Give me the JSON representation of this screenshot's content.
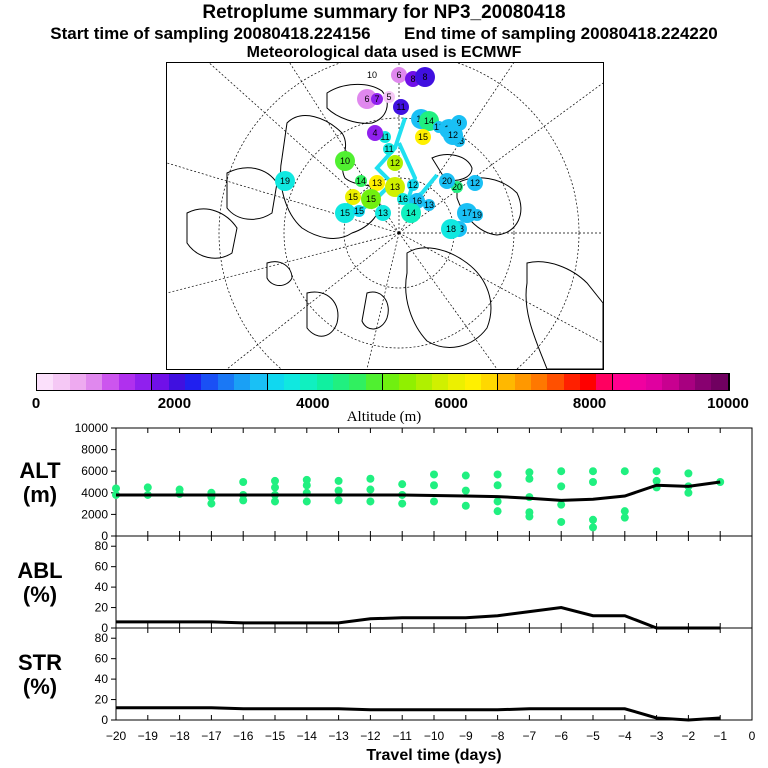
{
  "header": {
    "title": "Retroplume summary for NP3_20080418",
    "start_label": "Start time of sampling 20080418.224156",
    "end_label": "End time of sampling 20080418.224220",
    "met_label": "Meteorological data used is ECMWF"
  },
  "map_markers": [
    "10",
    "6",
    "6",
    "7",
    "8",
    "8",
    "5",
    "11",
    "11",
    "11",
    "4",
    "14",
    "12",
    "9",
    "11",
    "13",
    "15",
    "12",
    "11",
    "12",
    "10",
    "14",
    "13",
    "13",
    "12",
    "15",
    "15",
    "16",
    "16",
    "15",
    "15",
    "13",
    "14",
    "13",
    "12",
    "17",
    "19",
    "18",
    "18",
    "20",
    "20",
    "19"
  ],
  "colorbar": {
    "ticks": [
      "0",
      "2000",
      "4000",
      "6000",
      "8000",
      "10000"
    ],
    "label": "Altitude (m)",
    "colors": [
      "#fbe0fb",
      "#f5c8f5",
      "#eeaaf0",
      "#e088ee",
      "#cc55ee",
      "#b030ee",
      "#9020ee",
      "#7010e8",
      "#4010e0",
      "#2020f0",
      "#1a50f5",
      "#1a78f5",
      "#1aa0f5",
      "#1ac0f5",
      "#10d8f0",
      "#10e8e0",
      "#10f0c0",
      "#10f0a0",
      "#20f080",
      "#30f060",
      "#50f030",
      "#70f010",
      "#90f000",
      "#b0f000",
      "#d0f000",
      "#ecf000",
      "#fff000",
      "#ffd800",
      "#ffb800",
      "#ff9800",
      "#ff7800",
      "#ff5000",
      "#ff2000",
      "#ff0000",
      "#ff0060",
      "#ff0090",
      "#f000a0",
      "#e000a0",
      "#c80090",
      "#a80080",
      "#880070",
      "#700060"
    ]
  },
  "chart_data": [
    {
      "type": "scatter",
      "name": "ALT",
      "ylabel": "ALT",
      "yunit": "(m)",
      "ylim": [
        0,
        10000
      ],
      "yticks": [
        "0",
        "2000",
        "4000",
        "6000",
        "8000",
        "10000"
      ],
      "xlim": [
        -20,
        0
      ],
      "line": {
        "x": [
          -20,
          -19,
          -18,
          -17,
          -16,
          -15,
          -14,
          -13,
          -12,
          -11,
          -10,
          -9,
          -8,
          -7,
          -6,
          -5,
          -4,
          -3,
          -2,
          -1
        ],
        "y": [
          3800,
          3800,
          3800,
          3800,
          3800,
          3800,
          3800,
          3800,
          3800,
          3800,
          3750,
          3700,
          3650,
          3500,
          3300,
          3400,
          3700,
          4700,
          4600,
          5000
        ]
      },
      "points": [
        [
          -20,
          3800
        ],
        [
          -20,
          4400
        ],
        [
          -19,
          3800
        ],
        [
          -19,
          4500
        ],
        [
          -18,
          3900
        ],
        [
          -18,
          4300
        ],
        [
          -17,
          4000
        ],
        [
          -17,
          3600
        ],
        [
          -17,
          3000
        ],
        [
          -16,
          3800
        ],
        [
          -16,
          3300
        ],
        [
          -16,
          5000
        ],
        [
          -15,
          3200
        ],
        [
          -15,
          3800
        ],
        [
          -15,
          4500
        ],
        [
          -15,
          5100
        ],
        [
          -14,
          3200
        ],
        [
          -14,
          4000
        ],
        [
          -14,
          4700
        ],
        [
          -14,
          5200
        ],
        [
          -13,
          3300
        ],
        [
          -13,
          4200
        ],
        [
          -13,
          5100
        ],
        [
          -12,
          3200
        ],
        [
          -12,
          4300
        ],
        [
          -12,
          5300
        ],
        [
          -11,
          3000
        ],
        [
          -11,
          3800
        ],
        [
          -11,
          4800
        ],
        [
          -10,
          3200
        ],
        [
          -10,
          4700
        ],
        [
          -10,
          5700
        ],
        [
          -9,
          2800
        ],
        [
          -9,
          4200
        ],
        [
          -9,
          5600
        ],
        [
          -8,
          2300
        ],
        [
          -8,
          3200
        ],
        [
          -8,
          4700
        ],
        [
          -8,
          5700
        ],
        [
          -7,
          1800
        ],
        [
          -7,
          2200
        ],
        [
          -7,
          3600
        ],
        [
          -7,
          5300
        ],
        [
          -7,
          5900
        ],
        [
          -6,
          1300
        ],
        [
          -6,
          2900
        ],
        [
          -6,
          4600
        ],
        [
          -6,
          6000
        ],
        [
          -5,
          800
        ],
        [
          -5,
          1500
        ],
        [
          -5,
          5000
        ],
        [
          -5,
          6000
        ],
        [
          -4,
          1700
        ],
        [
          -4,
          2300
        ],
        [
          -4,
          6000
        ],
        [
          -3,
          4500
        ],
        [
          -3,
          5100
        ],
        [
          -3,
          6000
        ],
        [
          -2,
          4000
        ],
        [
          -2,
          4600
        ],
        [
          -2,
          5800
        ],
        [
          -1,
          5000
        ]
      ]
    },
    {
      "type": "line",
      "name": "ABL",
      "ylabel": "ABL",
      "yunit": "(%)",
      "ylim": [
        0,
        90
      ],
      "yticks": [
        "0",
        "20",
        "40",
        "60",
        "80"
      ],
      "x": [
        -20,
        -19,
        -18,
        -17,
        -16,
        -15,
        -14,
        -13,
        -12,
        -11,
        -10,
        -9,
        -8,
        -7,
        -6,
        -5,
        -4,
        -3,
        -2,
        -1
      ],
      "y": [
        6,
        6,
        6,
        6,
        5,
        5,
        5,
        5,
        9,
        10,
        10,
        10,
        12,
        16,
        20,
        12,
        12,
        0,
        0,
        0
      ]
    },
    {
      "type": "line",
      "name": "STR",
      "ylabel": "STR",
      "yunit": "(%)",
      "ylim": [
        0,
        90
      ],
      "yticks": [
        "0",
        "20",
        "40",
        "60",
        "80"
      ],
      "x": [
        -20,
        -19,
        -18,
        -17,
        -16,
        -15,
        -14,
        -13,
        -12,
        -11,
        -10,
        -9,
        -8,
        -7,
        -6,
        -5,
        -4,
        -3,
        -2,
        -1
      ],
      "y": [
        12,
        12,
        12,
        12,
        11,
        11,
        11,
        11,
        10,
        10,
        10,
        10,
        10,
        11,
        11,
        11,
        11,
        2,
        0,
        2
      ],
      "xticks": [
        "−20",
        "−19",
        "−18",
        "−17",
        "−16",
        "−15",
        "−14",
        "−13",
        "−12",
        "−11",
        "−10",
        "−9",
        "−8",
        "−7",
        "−6",
        "−5",
        "−4",
        "−3",
        "−2",
        "−1",
        "0"
      ],
      "xlabel": "Travel time (days)"
    }
  ]
}
